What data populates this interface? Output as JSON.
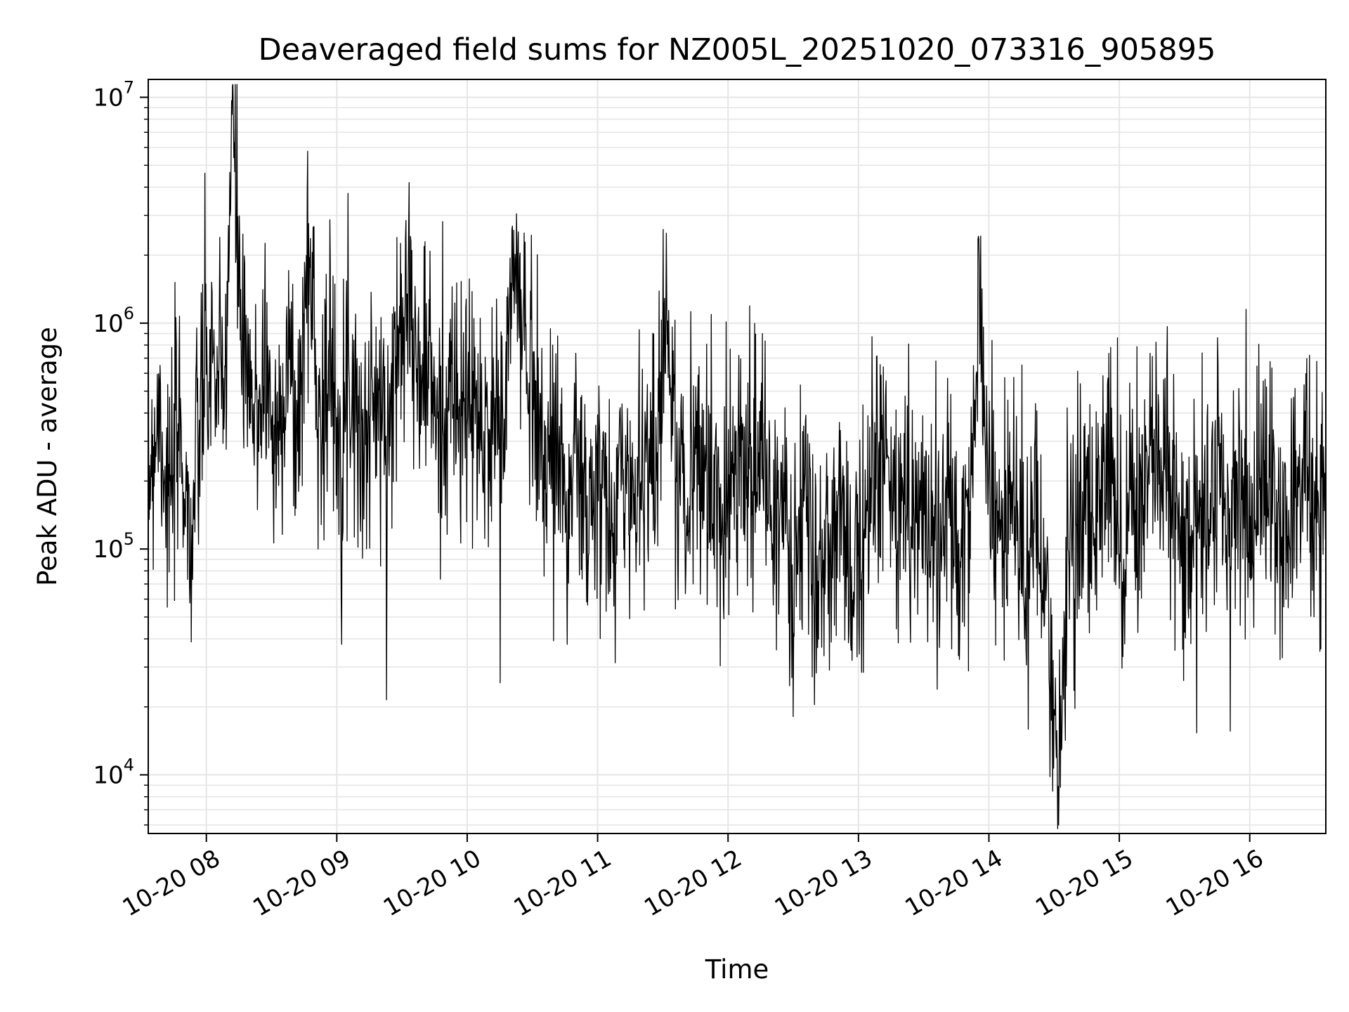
{
  "chart_data": {
    "type": "line",
    "title": "Deaveraged field sums for NZ005L_20251020_073316_905895",
    "xlabel": "Time",
    "ylabel": "Peak ADU - average",
    "x_axis": {
      "kind": "datetime",
      "range": [
        "2025-10-20T07:33:16",
        "2025-10-20T16:35:00"
      ],
      "tick_values": [
        "2025-10-20T08:00",
        "2025-10-20T09:00",
        "2025-10-20T10:00",
        "2025-10-20T11:00",
        "2025-10-20T12:00",
        "2025-10-20T13:00",
        "2025-10-20T14:00",
        "2025-10-20T15:00",
        "2025-10-20T16:00"
      ],
      "tick_labels": [
        "10-20 08",
        "10-20 09",
        "10-20 10",
        "10-20 11",
        "10-20 12",
        "10-20 13",
        "10-20 14",
        "10-20 15",
        "10-20 16"
      ]
    },
    "y_axis": {
      "scale": "log",
      "range": [
        5500,
        12000000
      ],
      "tick_values": [
        10000,
        100000,
        1000000,
        10000000
      ],
      "tick_labels": [
        {
          "base": "10",
          "exp": "4"
        },
        {
          "base": "10",
          "exp": "5"
        },
        {
          "base": "10",
          "exp": "6"
        },
        {
          "base": "10",
          "exp": "7"
        }
      ]
    },
    "grid": true,
    "line_color": "#000000",
    "series": [
      {
        "points": [
          [
            "2025-10-20T07:33",
            200000
          ],
          [
            "2025-10-20T07:38",
            450000
          ],
          [
            "2025-10-20T07:43",
            150000
          ],
          [
            "2025-10-20T07:48",
            350000
          ],
          [
            "2025-10-20T07:53",
            100000
          ],
          [
            "2025-10-20T07:58",
            500000
          ],
          [
            "2025-10-20T08:03",
            700000
          ],
          [
            "2025-10-20T08:08",
            400000
          ],
          [
            "2025-10-20T08:12",
            8500000
          ],
          [
            "2025-10-20T08:17",
            600000
          ],
          [
            "2025-10-20T08:22",
            350000
          ],
          [
            "2025-10-20T08:27",
            700000
          ],
          [
            "2025-10-20T08:32",
            250000
          ],
          [
            "2025-10-20T08:37",
            800000
          ],
          [
            "2025-10-20T08:42",
            300000
          ],
          [
            "2025-10-20T08:47",
            2200000
          ],
          [
            "2025-10-20T08:52",
            400000
          ],
          [
            "2025-10-20T08:57",
            600000
          ],
          [
            "2025-10-20T09:02",
            350000
          ],
          [
            "2025-10-20T09:07",
            650000
          ],
          [
            "2025-10-20T09:12",
            250000
          ],
          [
            "2025-10-20T09:17",
            500000
          ],
          [
            "2025-10-20T09:22",
            300000
          ],
          [
            "2025-10-20T09:27",
            600000
          ],
          [
            "2025-10-20T09:32",
            2100000
          ],
          [
            "2025-10-20T09:37",
            500000
          ],
          [
            "2025-10-20T09:42",
            700000
          ],
          [
            "2025-10-20T09:47",
            300000
          ],
          [
            "2025-10-20T09:52",
            550000
          ],
          [
            "2025-10-20T09:57",
            350000
          ],
          [
            "2025-10-20T10:02",
            500000
          ],
          [
            "2025-10-20T10:07",
            250000
          ],
          [
            "2025-10-20T10:12",
            450000
          ],
          [
            "2025-10-20T10:17",
            300000
          ],
          [
            "2025-10-20T10:21",
            2100000
          ],
          [
            "2025-10-20T10:26",
            800000
          ],
          [
            "2025-10-20T10:31",
            600000
          ],
          [
            "2025-10-20T10:36",
            200000
          ],
          [
            "2025-10-20T10:41",
            350000
          ],
          [
            "2025-10-20T10:46",
            150000
          ],
          [
            "2025-10-20T10:51",
            250000
          ],
          [
            "2025-10-20T10:56",
            120000
          ],
          [
            "2025-10-20T11:01",
            200000
          ],
          [
            "2025-10-20T11:06",
            100000
          ],
          [
            "2025-10-20T11:11",
            250000
          ],
          [
            "2025-10-20T11:16",
            150000
          ],
          [
            "2025-10-20T11:21",
            300000
          ],
          [
            "2025-10-20T11:26",
            200000
          ],
          [
            "2025-10-20T11:31",
            1300000
          ],
          [
            "2025-10-20T11:36",
            250000
          ],
          [
            "2025-10-20T11:41",
            150000
          ],
          [
            "2025-10-20T11:46",
            300000
          ],
          [
            "2025-10-20T11:51",
            200000
          ],
          [
            "2025-10-20T11:56",
            120000
          ],
          [
            "2025-10-20T12:01",
            250000
          ],
          [
            "2025-10-20T12:06",
            300000
          ],
          [
            "2025-10-20T12:11",
            200000
          ],
          [
            "2025-10-20T12:16",
            250000
          ],
          [
            "2025-10-20T12:21",
            150000
          ],
          [
            "2025-10-20T12:26",
            120000
          ],
          [
            "2025-10-20T12:31",
            80000
          ],
          [
            "2025-10-20T12:36",
            150000
          ],
          [
            "2025-10-20T12:41",
            60000
          ],
          [
            "2025-10-20T12:46",
            100000
          ],
          [
            "2025-10-20T12:51",
            130000
          ],
          [
            "2025-10-20T12:56",
            60000
          ],
          [
            "2025-10-20T13:01",
            150000
          ],
          [
            "2025-10-20T13:06",
            200000
          ],
          [
            "2025-10-20T13:11",
            250000
          ],
          [
            "2025-10-20T13:16",
            150000
          ],
          [
            "2025-10-20T13:21",
            180000
          ],
          [
            "2025-10-20T13:26",
            120000
          ],
          [
            "2025-10-20T13:31",
            200000
          ],
          [
            "2025-10-20T13:36",
            100000
          ],
          [
            "2025-10-20T13:41",
            150000
          ],
          [
            "2025-10-20T13:46",
            80000
          ],
          [
            "2025-10-20T13:51",
            120000
          ],
          [
            "2025-10-20T13:56",
            1200000
          ],
          [
            "2025-10-20T14:01",
            150000
          ],
          [
            "2025-10-20T14:06",
            100000
          ],
          [
            "2025-10-20T14:11",
            200000
          ],
          [
            "2025-10-20T14:16",
            80000
          ],
          [
            "2025-10-20T14:21",
            120000
          ],
          [
            "2025-10-20T14:26",
            60000
          ],
          [
            "2025-10-20T14:31",
            7500
          ],
          [
            "2025-10-20T14:36",
            90000
          ],
          [
            "2025-10-20T14:41",
            150000
          ],
          [
            "2025-10-20T14:46",
            100000
          ],
          [
            "2025-10-20T14:51",
            200000
          ],
          [
            "2025-10-20T14:56",
            300000
          ],
          [
            "2025-10-20T15:01",
            100000
          ],
          [
            "2025-10-20T15:06",
            200000
          ],
          [
            "2025-10-20T15:11",
            150000
          ],
          [
            "2025-10-20T15:16",
            250000
          ],
          [
            "2025-10-20T15:21",
            200000
          ],
          [
            "2025-10-20T15:26",
            150000
          ],
          [
            "2025-10-20T15:31",
            120000
          ],
          [
            "2025-10-20T15:36",
            100000
          ],
          [
            "2025-10-20T15:41",
            150000
          ],
          [
            "2025-10-20T15:46",
            200000
          ],
          [
            "2025-10-20T15:51",
            120000
          ],
          [
            "2025-10-20T15:56",
            200000
          ],
          [
            "2025-10-20T16:01",
            150000
          ],
          [
            "2025-10-20T16:06",
            200000
          ],
          [
            "2025-10-20T16:11",
            150000
          ],
          [
            "2025-10-20T16:16",
            120000
          ],
          [
            "2025-10-20T16:21",
            200000
          ],
          [
            "2025-10-20T16:26",
            250000
          ],
          [
            "2025-10-20T16:31",
            120000
          ],
          [
            "2025-10-20T16:34",
            150000
          ]
        ]
      }
    ]
  }
}
